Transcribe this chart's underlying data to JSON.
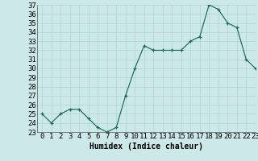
{
  "x": [
    0,
    1,
    2,
    3,
    4,
    5,
    6,
    7,
    8,
    9,
    10,
    11,
    12,
    13,
    14,
    15,
    16,
    17,
    18,
    19,
    20,
    21,
    22,
    23
  ],
  "y": [
    25,
    24,
    25,
    25.5,
    25.5,
    24.5,
    23.5,
    23,
    23.5,
    27,
    30,
    32.5,
    32,
    32,
    32,
    32,
    33,
    33.5,
    37,
    36.5,
    35,
    34.5,
    31,
    30
  ],
  "xlabel": "Humidex (Indice chaleur)",
  "ylim": [
    23,
    37
  ],
  "xlim": [
    -0.5,
    23
  ],
  "yticks": [
    23,
    24,
    25,
    26,
    27,
    28,
    29,
    30,
    31,
    32,
    33,
    34,
    35,
    36,
    37
  ],
  "xticks": [
    0,
    1,
    2,
    3,
    4,
    5,
    6,
    7,
    8,
    9,
    10,
    11,
    12,
    13,
    14,
    15,
    16,
    17,
    18,
    19,
    20,
    21,
    22,
    23
  ],
  "line_color": "#1a6b5a",
  "marker": "+",
  "bg_color": "#cce8e8",
  "grid_color": "#aad4d4",
  "label_fontsize": 7,
  "tick_fontsize": 6.5
}
